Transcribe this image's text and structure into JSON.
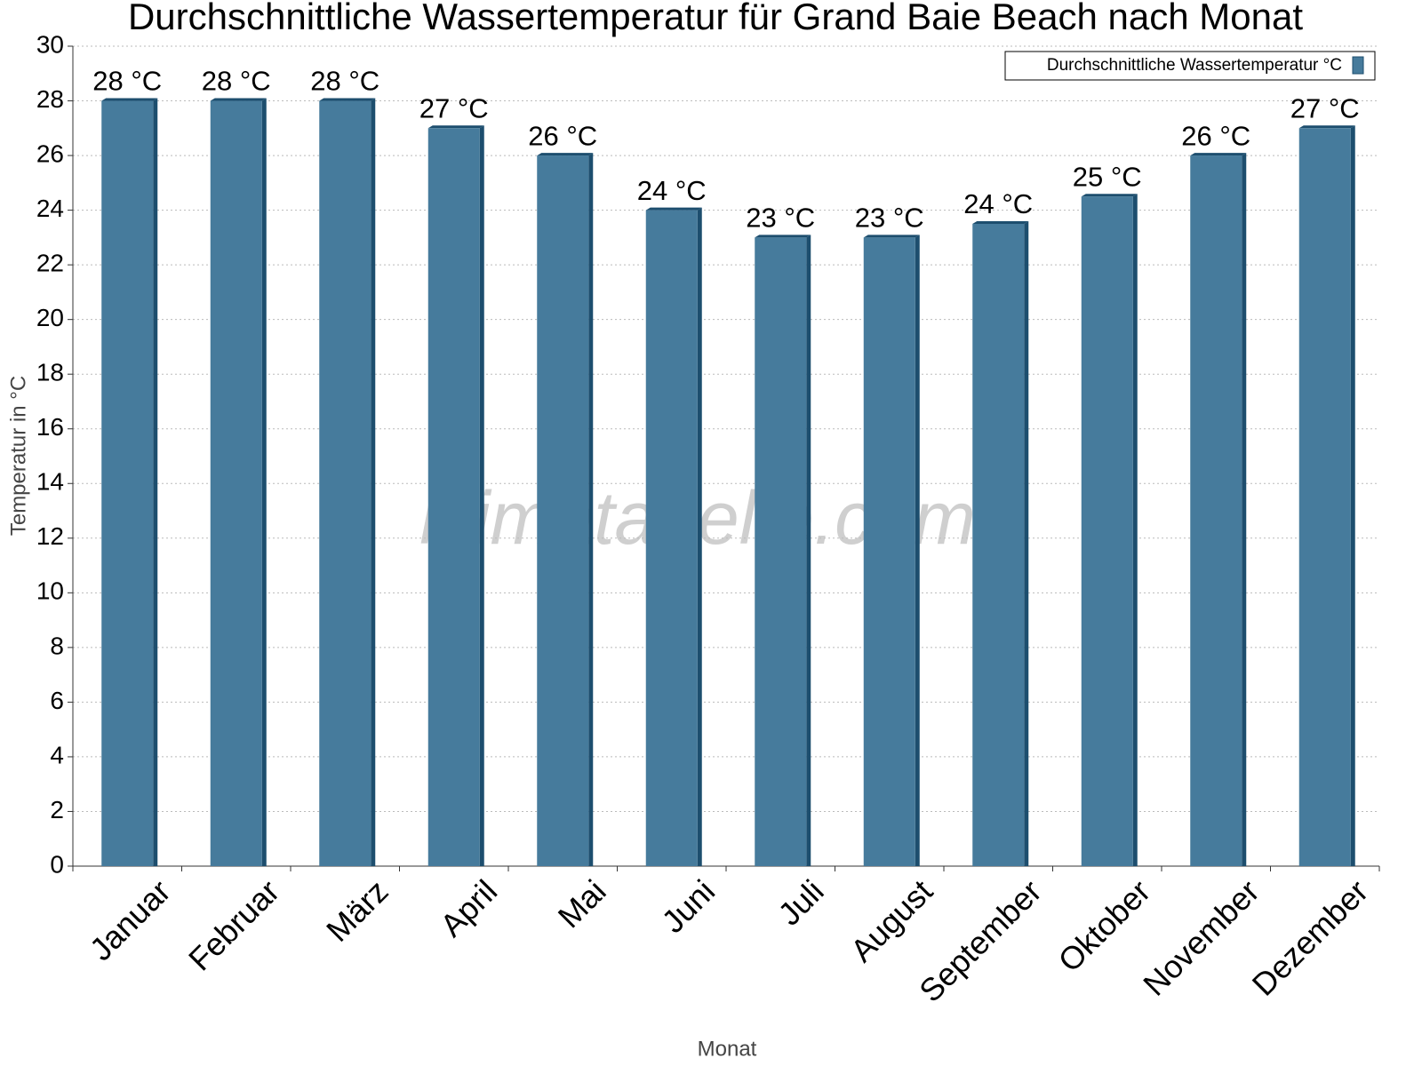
{
  "chart_data": {
    "type": "bar",
    "title": "Durchschnittliche Wassertemperatur für Grand Baie Beach nach Monat",
    "x_label": "Monat",
    "y_label": "Temperatur in °C",
    "watermark": "klimatabelle.com",
    "categories": [
      "Januar",
      "Februar",
      "März",
      "April",
      "Mai",
      "Juni",
      "Juli",
      "August",
      "September",
      "Oktober",
      "November",
      "Dezember"
    ],
    "series": [
      {
        "name": "Durchschnittliche Wassertemperatur °C",
        "color": "#467b9c",
        "values": [
          28,
          28,
          28,
          27,
          26,
          24,
          23,
          23,
          23.5,
          24.5,
          26,
          27
        ],
        "value_labels": [
          "28 °C",
          "28 °C",
          "28 °C",
          "27 °C",
          "26 °C",
          "24 °C",
          "23 °C",
          "23 °C",
          "24 °C",
          "25 °C",
          "26 °C",
          "27 °C"
        ]
      }
    ],
    "ylim": [
      0,
      30
    ],
    "yticks": [
      0,
      2,
      4,
      6,
      8,
      10,
      12,
      14,
      16,
      18,
      20,
      22,
      24,
      26,
      28,
      30
    ],
    "grid": true,
    "legend": "top-right"
  }
}
